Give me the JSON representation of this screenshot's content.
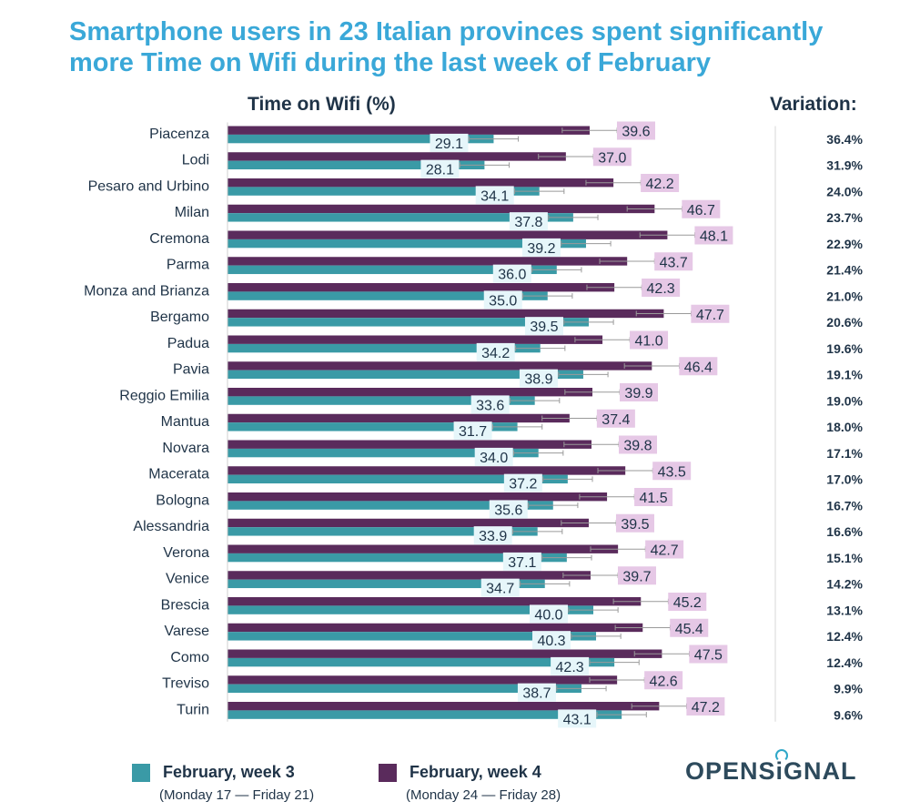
{
  "title_lines": [
    "Smartphone users in 23 Italian provinces spent significantly",
    "more Time on Wifi during the last week of February"
  ],
  "headers": {
    "metric": "Time on Wifi (%)",
    "variation": "Variation:"
  },
  "colors": {
    "title": "#3aa8d8",
    "week3": "#3a9aa6",
    "week4": "#5a2b5c",
    "week4_label_bg": "#e6c8e6",
    "week3_label_bg": "#e6f6fa",
    "text": "#1f3347"
  },
  "legend": [
    {
      "name": "February, week 3",
      "sub": "(Monday 17 — Friday 21)",
      "color": "#3a9aa6"
    },
    {
      "name": "February, week 4",
      "sub": "(Monday 24 — Friday 28)",
      "color": "#5a2b5c"
    }
  ],
  "logo": {
    "text_before": "OPENS",
    "dotted_letter": "i",
    "text_after": "GNAL"
  },
  "chart_data": {
    "type": "bar",
    "orientation": "horizontal",
    "categories": [
      "Piacenza",
      "Lodi",
      "Pesaro and Urbino",
      "Milan",
      "Cremona",
      "Parma",
      "Monza and Brianza",
      "Bergamo",
      "Padua",
      "Pavia",
      "Reggio Emilia",
      "Mantua",
      "Novara",
      "Macerata",
      "Bologna",
      "Alessandria",
      "Verona",
      "Venice",
      "Brescia",
      "Varese",
      "Como",
      "Treviso",
      "Turin"
    ],
    "series": [
      {
        "name": "February, week 4",
        "values": [
          39.6,
          37.0,
          42.2,
          46.7,
          48.1,
          43.7,
          42.3,
          47.7,
          41.0,
          46.4,
          39.9,
          37.4,
          39.8,
          43.5,
          41.5,
          39.5,
          42.7,
          39.7,
          45.2,
          45.4,
          47.5,
          42.6,
          47.2
        ]
      },
      {
        "name": "February, week 3",
        "values": [
          29.1,
          28.1,
          34.1,
          37.8,
          39.2,
          36.0,
          35.0,
          39.5,
          34.2,
          38.9,
          33.6,
          31.7,
          34.0,
          37.2,
          35.6,
          33.9,
          37.1,
          34.7,
          40.0,
          40.3,
          42.3,
          38.7,
          43.1
        ]
      }
    ],
    "variation": [
      "36.4%",
      "31.9%",
      "24.0%",
      "23.7%",
      "22.9%",
      "21.4%",
      "21.0%",
      "20.6%",
      "19.6%",
      "19.1%",
      "19.0%",
      "18.0%",
      "17.1%",
      "17.0%",
      "16.7%",
      "16.6%",
      "15.1%",
      "14.2%",
      "13.1%",
      "12.4%",
      "12.4%",
      "9.9%",
      "9.6%"
    ],
    "error_bars": true,
    "xlim": [
      0,
      50
    ],
    "grid": false
  }
}
